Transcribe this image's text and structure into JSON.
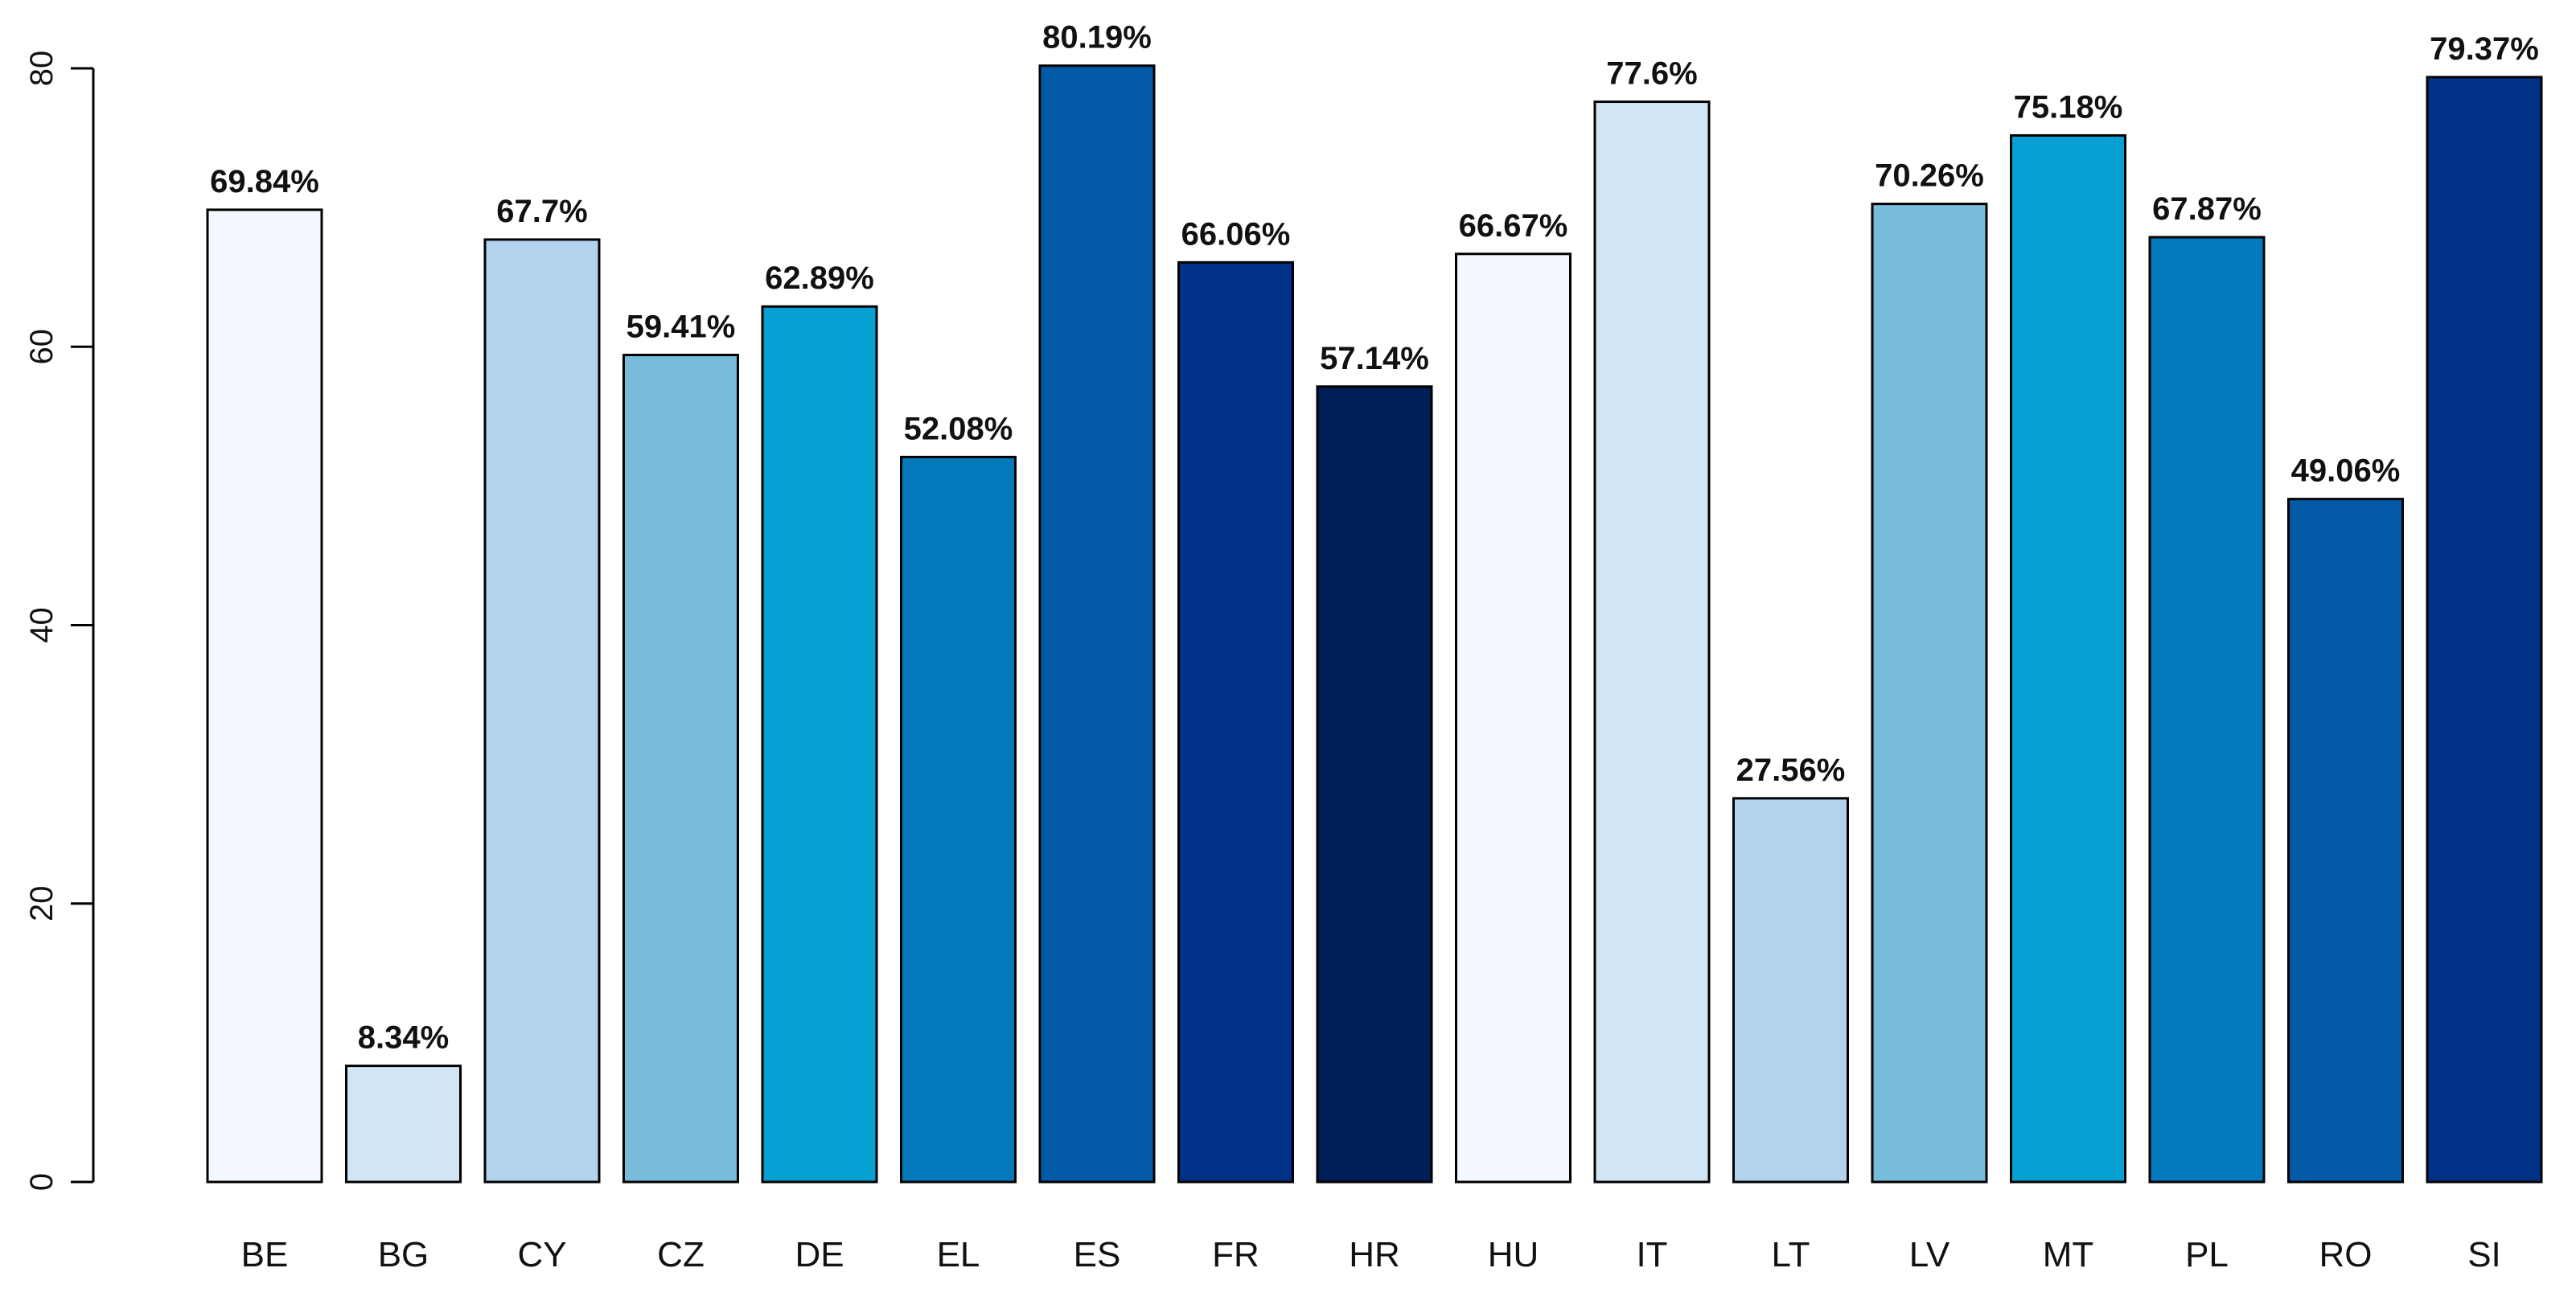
{
  "chart_data": {
    "type": "bar",
    "title": "",
    "xlabel": "",
    "ylabel": "",
    "ylim": [
      0,
      80
    ],
    "yticks": [
      0,
      20,
      40,
      60,
      80
    ],
    "grid": false,
    "categories": [
      "BE",
      "BG",
      "CY",
      "CZ",
      "DE",
      "EL",
      "ES",
      "FR",
      "HR",
      "HU",
      "IT",
      "LT",
      "LV",
      "MT",
      "PL",
      "RO",
      "SI"
    ],
    "values": [
      69.84,
      8.34,
      67.7,
      59.41,
      62.89,
      52.08,
      80.19,
      66.06,
      57.14,
      66.67,
      77.6,
      27.56,
      70.26,
      75.18,
      67.87,
      49.06,
      79.37
    ],
    "data_labels": [
      "69.84%",
      "8.34%",
      "67.7%",
      "59.41%",
      "62.89%",
      "52.08%",
      "80.19%",
      "66.06%",
      "57.14%",
      "66.67%",
      "77.6%",
      "27.56%",
      "70.26%",
      "75.18%",
      "67.87%",
      "49.06%",
      "79.37%"
    ],
    "colors": [
      "#F3F9FE",
      "#D2E5F5",
      "#B2D2EE",
      "#78BCDC",
      "#07A0D2",
      "#0479BB",
      "#0159A8",
      "#003287",
      "#001E58",
      "#F3F9FE",
      "#D2E5F5",
      "#B2D2EE",
      "#78BCDC",
      "#07A0D2",
      "#0479BB",
      "#0159A8",
      "#003287"
    ]
  }
}
